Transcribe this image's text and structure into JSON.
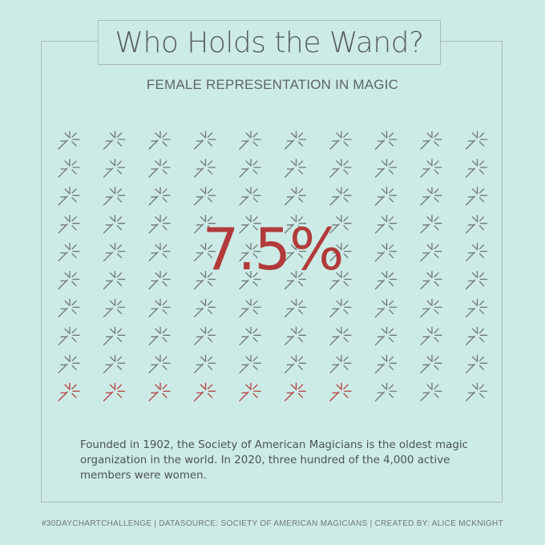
{
  "header": {
    "title": "Who Holds the Wand?",
    "subtitle": "FEMALE REPRESENTATION IN MAGIC"
  },
  "chart_data": {
    "type": "waffle",
    "title": "Who Holds the Wand?",
    "subtitle": "FEMALE REPRESENTATION IN MAGIC",
    "total_icons": 100,
    "highlighted_icons": 7.5,
    "highlight_label": "7.5%",
    "highlight_percent": 7.5,
    "icon": "magic-wand-icon",
    "colors": {
      "highlight": "#b23a3a",
      "base": "#6e7676"
    }
  },
  "description": "Founded in 1902, the Society of American Magicians is the oldest magic organization in the world. In 2020, three hundred of the 4,000 active members were women.",
  "footer": "#30DAYCHARTCHALLENGE | DATASOURCE: SOCIETY OF AMERICAN MAGICIANS | CREATED BY: ALICE MCKNIGHT"
}
